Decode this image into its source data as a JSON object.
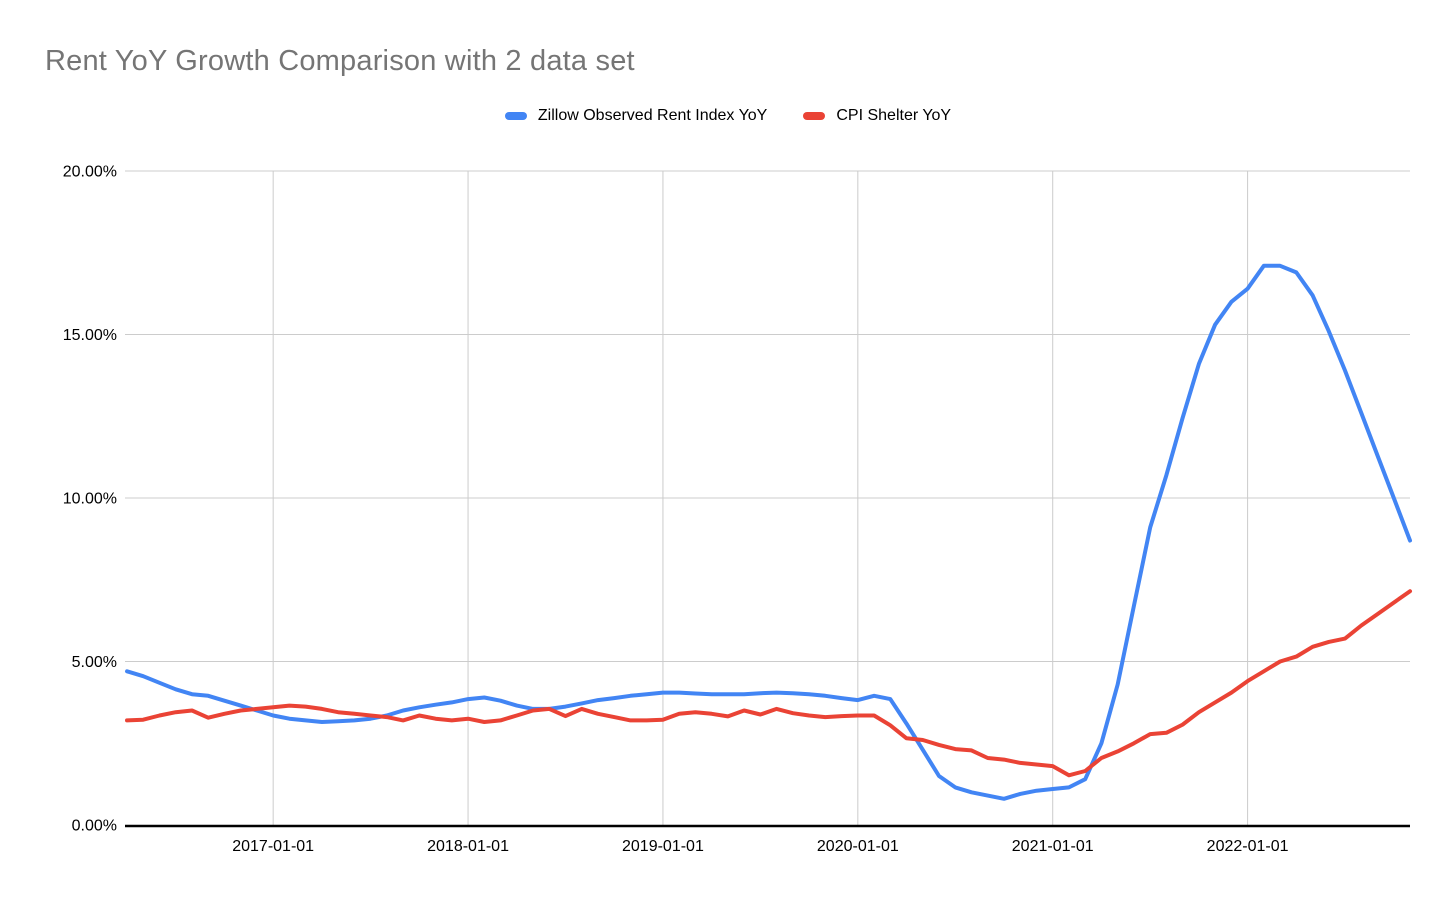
{
  "chart_data": {
    "type": "line",
    "title": "Rent YoY Growth Comparison with 2 data set",
    "xlabel": "",
    "ylabel": "",
    "ylim": [
      0,
      20
    ],
    "grid": true,
    "legend_position": "top",
    "colors": {
      "title": "#757575",
      "grid": "#cccccc",
      "axis": "#000000",
      "tick_label": "#000000",
      "background": "#ffffff"
    },
    "y_ticks": [
      {
        "value": 20,
        "label": "20.00%"
      },
      {
        "value": 15,
        "label": "15.00%"
      },
      {
        "value": 10,
        "label": "10.00%"
      },
      {
        "value": 5,
        "label": "5.00%"
      },
      {
        "value": 0,
        "label": "0.00%"
      }
    ],
    "x_ticks": [
      {
        "date": "2017-01-01",
        "label": "2017-01-01"
      },
      {
        "date": "2018-01-01",
        "label": "2018-01-01"
      },
      {
        "date": "2019-01-01",
        "label": "2019-01-01"
      },
      {
        "date": "2020-01-01",
        "label": "2020-01-01"
      },
      {
        "date": "2021-01-01",
        "label": "2021-01-01"
      },
      {
        "date": "2022-01-01",
        "label": "2022-01-01"
      }
    ],
    "x": [
      "2016-04-01",
      "2016-05-01",
      "2016-06-01",
      "2016-07-01",
      "2016-08-01",
      "2016-09-01",
      "2016-10-01",
      "2016-11-01",
      "2016-12-01",
      "2017-01-01",
      "2017-02-01",
      "2017-03-01",
      "2017-04-01",
      "2017-05-01",
      "2017-06-01",
      "2017-07-01",
      "2017-08-01",
      "2017-09-01",
      "2017-10-01",
      "2017-11-01",
      "2017-12-01",
      "2018-01-01",
      "2018-02-01",
      "2018-03-01",
      "2018-04-01",
      "2018-05-01",
      "2018-06-01",
      "2018-07-01",
      "2018-08-01",
      "2018-09-01",
      "2018-10-01",
      "2018-11-01",
      "2018-12-01",
      "2019-01-01",
      "2019-02-01",
      "2019-03-01",
      "2019-04-01",
      "2019-05-01",
      "2019-06-01",
      "2019-07-01",
      "2019-08-01",
      "2019-09-01",
      "2019-10-01",
      "2019-11-01",
      "2019-12-01",
      "2020-01-01",
      "2020-02-01",
      "2020-03-01",
      "2020-04-01",
      "2020-05-01",
      "2020-06-01",
      "2020-07-01",
      "2020-08-01",
      "2020-09-01",
      "2020-10-01",
      "2020-11-01",
      "2020-12-01",
      "2021-01-01",
      "2021-02-01",
      "2021-03-01",
      "2021-04-01",
      "2021-05-01",
      "2021-06-01",
      "2021-07-01",
      "2021-08-01",
      "2021-09-01",
      "2021-10-01",
      "2021-11-01",
      "2021-12-01",
      "2022-01-01",
      "2022-02-01",
      "2022-03-01",
      "2022-04-01",
      "2022-05-01",
      "2022-06-01",
      "2022-07-01",
      "2022-08-01",
      "2022-09-01",
      "2022-10-01",
      "2022-11-01"
    ],
    "series": [
      {
        "name": "Zillow Observed Rent Index YoY",
        "color": "#4285f4",
        "values": [
          4.7,
          4.55,
          4.35,
          4.15,
          4.0,
          3.95,
          3.8,
          3.65,
          3.5,
          3.35,
          3.25,
          3.2,
          3.15,
          3.17,
          3.2,
          3.25,
          3.35,
          3.5,
          3.6,
          3.68,
          3.75,
          3.85,
          3.9,
          3.8,
          3.65,
          3.55,
          3.55,
          3.62,
          3.72,
          3.82,
          3.88,
          3.95,
          4.0,
          4.05,
          4.05,
          4.02,
          4.0,
          4.0,
          4.0,
          4.03,
          4.05,
          4.03,
          4.0,
          3.95,
          3.88,
          3.82,
          3.95,
          3.85,
          3.1,
          2.3,
          1.5,
          1.15,
          1.0,
          0.9,
          0.8,
          0.95,
          1.05,
          1.1,
          1.15,
          1.4,
          2.5,
          4.3,
          6.7,
          9.1,
          10.7,
          12.45,
          14.1,
          15.3,
          16.0,
          16.4,
          17.1,
          17.1,
          16.9,
          16.2,
          15.1,
          13.9,
          12.6,
          11.3,
          10.0,
          8.7
        ]
      },
      {
        "name": "CPI Shelter YoY",
        "color": "#ea4335",
        "values": [
          3.2,
          3.22,
          3.35,
          3.45,
          3.5,
          3.28,
          3.4,
          3.5,
          3.55,
          3.6,
          3.65,
          3.62,
          3.55,
          3.45,
          3.4,
          3.35,
          3.3,
          3.2,
          3.35,
          3.25,
          3.2,
          3.25,
          3.15,
          3.2,
          3.35,
          3.5,
          3.55,
          3.33,
          3.55,
          3.4,
          3.3,
          3.2,
          3.2,
          3.22,
          3.4,
          3.45,
          3.4,
          3.32,
          3.5,
          3.38,
          3.55,
          3.42,
          3.35,
          3.3,
          3.33,
          3.35,
          3.35,
          3.05,
          2.65,
          2.6,
          2.45,
          2.32,
          2.28,
          2.05,
          2.0,
          1.9,
          1.85,
          1.8,
          1.52,
          1.65,
          2.05,
          2.25,
          2.5,
          2.78,
          2.82,
          3.07,
          3.45,
          3.75,
          4.05,
          4.4,
          4.7,
          5.0,
          5.15,
          5.45,
          5.6,
          5.7,
          6.1,
          6.45,
          6.8,
          7.15
        ]
      }
    ]
  }
}
